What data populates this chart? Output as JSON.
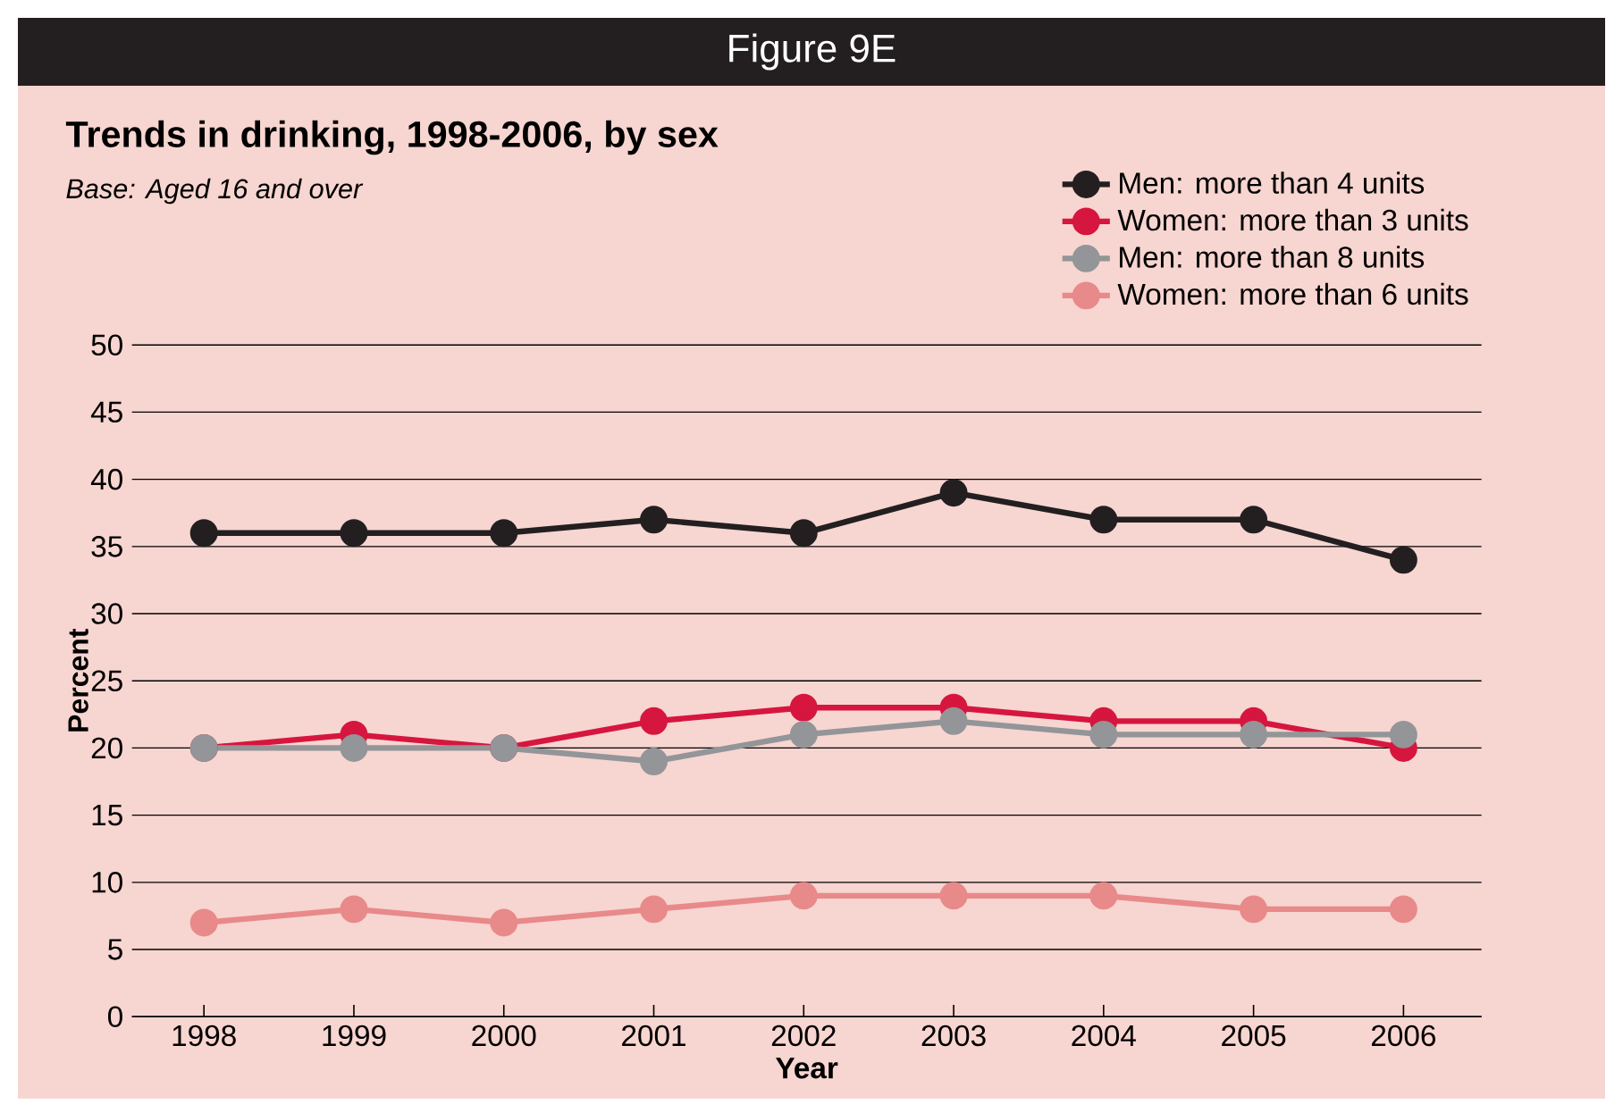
{
  "chart_data": {
    "type": "line",
    "title": "Trends in drinking, 1998-2006, by sex",
    "subtitle": "Base: Aged 16 and over",
    "annotations": [
      "Figure 9E"
    ],
    "xlabel": "Year",
    "ylabel": "Percent",
    "categories": [
      "1998",
      "1999",
      "2000",
      "2001",
      "2002",
      "2003",
      "2004",
      "2005",
      "2006"
    ],
    "series": [
      {
        "name": "Men: more than 4 units",
        "color": "#231f20",
        "values": [
          36,
          36,
          36,
          37,
          36,
          39,
          37,
          37,
          34
        ]
      },
      {
        "name": "Women: more than 3 units",
        "color": "#d6163f",
        "values": [
          20,
          21,
          20,
          22,
          23,
          23,
          22,
          22,
          20
        ]
      },
      {
        "name": "Men: more than 8 units",
        "color": "#939598",
        "values": [
          20,
          20,
          20,
          19,
          21,
          22,
          21,
          21,
          21
        ]
      },
      {
        "name": "Women: more than 6 units",
        "color": "#e8898a",
        "values": [
          7,
          8,
          7,
          8,
          9,
          9,
          9,
          8,
          8
        ]
      }
    ],
    "ylim": [
      0,
      50
    ],
    "yticks": [
      0,
      5,
      10,
      15,
      20,
      25,
      30,
      35,
      40,
      45,
      50
    ],
    "grid": "y",
    "legend": "top right",
    "marker": "circle"
  }
}
